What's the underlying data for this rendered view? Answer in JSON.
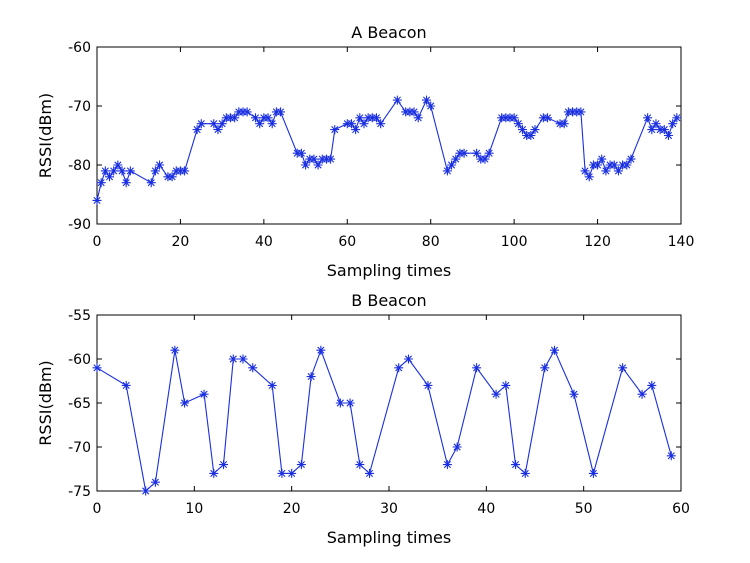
{
  "chart_data": [
    {
      "type": "line",
      "title": "A Beacon",
      "xlabel": "Sampling times",
      "ylabel": "RSSI(dBm)",
      "xlim": [
        0,
        140
      ],
      "ylim": [
        -90,
        -60
      ],
      "xticks": [
        0,
        20,
        40,
        60,
        80,
        100,
        120,
        140
      ],
      "yticks": [
        -90,
        -80,
        -70,
        -60
      ],
      "xtick_labels": [
        "0",
        "20",
        "40",
        "60",
        "80",
        "100",
        "120",
        "140"
      ],
      "ytick_labels": [
        "-90",
        "-80",
        "-70",
        "-60"
      ],
      "grid": false,
      "marker": "asterisk",
      "color": "#1a2fe0",
      "series": [
        {
          "x": [
            0,
            1,
            2,
            3,
            4,
            5,
            6,
            7,
            8,
            13,
            14,
            15,
            17,
            18,
            19,
            20,
            21,
            24,
            25,
            28,
            29,
            30,
            31,
            32,
            33,
            34,
            35,
            36,
            38,
            39,
            40,
            41,
            42,
            43,
            44,
            48,
            49,
            50,
            51,
            52,
            53,
            54,
            55,
            56,
            57,
            60,
            61,
            62,
            63,
            64,
            65,
            66,
            67,
            68,
            72,
            74,
            75,
            76,
            77,
            79,
            80,
            84,
            85,
            86,
            87,
            88,
            91,
            92,
            93,
            94,
            97,
            98,
            99,
            100,
            101,
            102,
            103,
            104,
            105,
            107,
            108,
            111,
            112,
            113,
            114,
            115,
            116,
            117,
            118,
            119,
            120,
            121,
            122,
            123,
            124,
            125,
            126,
            127,
            128,
            132,
            133,
            134,
            135,
            136,
            137,
            138,
            139
          ],
          "y": [
            -86,
            -83,
            -81,
            -82,
            -81,
            -80,
            -81,
            -83,
            -81,
            -83,
            -81,
            -80,
            -82,
            -82,
            -81,
            -81,
            -81,
            -74,
            -73,
            -73,
            -74,
            -73,
            -72,
            -72,
            -72,
            -71,
            -71,
            -71,
            -72,
            -73,
            -72,
            -72,
            -73,
            -71,
            -71,
            -78,
            -78,
            -80,
            -79,
            -79,
            -80,
            -79,
            -79,
            -79,
            -74,
            -73,
            -73,
            -74,
            -72,
            -73,
            -72,
            -72,
            -72,
            -73,
            -69,
            -71,
            -71,
            -71,
            -72,
            -69,
            -70,
            -81,
            -80,
            -79,
            -78,
            -78,
            -78,
            -79,
            -79,
            -78,
            -72,
            -72,
            -72,
            -72,
            -73,
            -74,
            -75,
            -75,
            -74,
            -72,
            -72,
            -73,
            -73,
            -71,
            -71,
            -71,
            -71,
            -81,
            -82,
            -80,
            -80,
            -79,
            -81,
            -80,
            -80,
            -81,
            -80,
            -80,
            -79,
            -72,
            -74,
            -73,
            -74,
            -74,
            -75,
            -73,
            -72
          ]
        }
      ]
    },
    {
      "type": "line",
      "title": "B Beacon",
      "xlabel": "Sampling times",
      "ylabel": "RSSI(dBm)",
      "xlim": [
        0,
        60
      ],
      "ylim": [
        -75,
        -55
      ],
      "xticks": [
        0,
        10,
        20,
        30,
        40,
        50,
        60
      ],
      "yticks": [
        -75,
        -70,
        -65,
        -60,
        -55
      ],
      "xtick_labels": [
        "0",
        "10",
        "20",
        "30",
        "40",
        "50",
        "60"
      ],
      "ytick_labels": [
        "-75",
        "-70",
        "-65",
        "-60",
        "-55"
      ],
      "grid": false,
      "marker": "asterisk",
      "color": "#1a2fe0",
      "series": [
        {
          "x": [
            0,
            3,
            5,
            6,
            8,
            9,
            11,
            12,
            13,
            14,
            15,
            16,
            18,
            19,
            20,
            21,
            22,
            23,
            25,
            26,
            27,
            28,
            31,
            32,
            34,
            36,
            37,
            39,
            41,
            42,
            43,
            44,
            46,
            47,
            49,
            51,
            54,
            56,
            57,
            59
          ],
          "y": [
            -61,
            -63,
            -75,
            -74,
            -59,
            -65,
            -64,
            -73,
            -72,
            -60,
            -60,
            -61,
            -63,
            -73,
            -73,
            -72,
            -62,
            -59,
            -65,
            -65,
            -72,
            -73,
            -61,
            -60,
            -63,
            -72,
            -70,
            -61,
            -64,
            -63,
            -72,
            -73,
            -61,
            -59,
            -64,
            -73,
            -61,
            -64,
            -63,
            -71
          ]
        }
      ]
    }
  ]
}
